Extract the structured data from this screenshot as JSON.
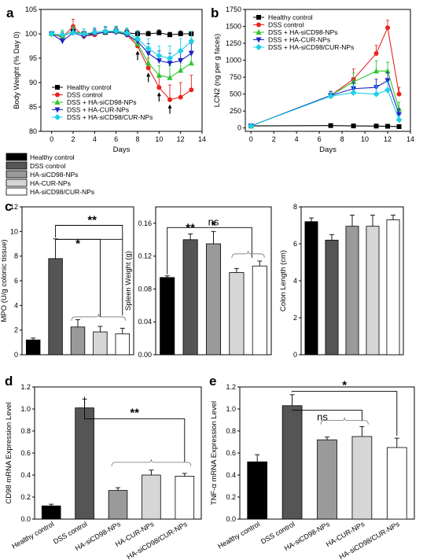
{
  "panels": {
    "a": "a",
    "b": "b",
    "c": "c",
    "d": "d",
    "e": "e"
  },
  "legend_groups": [
    {
      "name": "Healthy control",
      "color": "#000000"
    },
    {
      "name": "DSS control",
      "color": "#555555"
    },
    {
      "name": "HA-siCD98-NPs",
      "color": "#9a9a9a"
    },
    {
      "name": "HA-CUR-NPs",
      "color": "#d6d6d6"
    },
    {
      "name": "HA-siCD98/CUR-NPs",
      "color": "#ffffff"
    }
  ],
  "chart_data": [
    {
      "id": "a",
      "type": "line",
      "xlabel": "Days",
      "ylabel": "Body Weight (% Day 0)",
      "xlim": [
        -1,
        14
      ],
      "ylim": [
        80,
        105
      ],
      "xticks": [
        0,
        2,
        4,
        6,
        8,
        10,
        12,
        14
      ],
      "yticks": [
        80,
        85,
        90,
        95,
        100,
        105
      ],
      "legend_position": "lower-left",
      "series": [
        {
          "name": "Healthy control",
          "color": "#000000",
          "marker": "square",
          "x": [
            0,
            1,
            2,
            3,
            4,
            5,
            6,
            7,
            8,
            9,
            10,
            11,
            12,
            13
          ],
          "y": [
            100,
            99.5,
            100.5,
            100,
            100,
            100.3,
            100.5,
            100.2,
            100,
            100,
            100.2,
            99.8,
            100,
            100
          ],
          "err": [
            0.3,
            0.5,
            0.6,
            0.5,
            0.6,
            0.5,
            0.6,
            0.5,
            0.6,
            0.5,
            0.6,
            0.5,
            0.6,
            0.5
          ]
        },
        {
          "name": "DSS control",
          "color": "#e8251f",
          "marker": "circle",
          "x": [
            0,
            1,
            2,
            3,
            4,
            5,
            6,
            7,
            8,
            9,
            10,
            11,
            12,
            13
          ],
          "y": [
            100,
            99.3,
            101.5,
            99.5,
            99.8,
            100.5,
            100.5,
            99.8,
            97.5,
            93,
            89,
            86.5,
            87,
            88.5
          ],
          "err": [
            0.5,
            1,
            1.5,
            1,
            1,
            1,
            1,
            1.2,
            1.5,
            2,
            2.5,
            3,
            3,
            3
          ]
        },
        {
          "name": "DSS + HA-siCD98-NPs",
          "color": "#2fc62f",
          "marker": "triangle-up",
          "x": [
            0,
            1,
            2,
            3,
            4,
            5,
            6,
            7,
            8,
            9,
            10,
            11,
            12,
            13
          ],
          "y": [
            100,
            99.5,
            100.5,
            100,
            100.3,
            100.5,
            100.5,
            100,
            98,
            94,
            91.5,
            91,
            92.5,
            94
          ],
          "err": [
            0.5,
            1,
            1,
            1,
            1,
            1,
            1,
            1,
            1.5,
            2,
            2,
            2.5,
            2.5,
            2.5
          ]
        },
        {
          "name": "DSS + HA-CUR-NPs",
          "color": "#2121c8",
          "marker": "triangle-down",
          "x": [
            0,
            1,
            2,
            3,
            4,
            5,
            6,
            7,
            8,
            9,
            10,
            11,
            12,
            13
          ],
          "y": [
            100,
            98.5,
            100.2,
            99.5,
            100,
            100.3,
            100.3,
            99.8,
            98.5,
            96,
            94.5,
            94,
            94.5,
            96
          ],
          "err": [
            0.5,
            1,
            1,
            1,
            1,
            1,
            1,
            1,
            1.5,
            2,
            2,
            2,
            2,
            2
          ]
        },
        {
          "name": "DSS + HA-siCD98/CUR-NPs",
          "color": "#1ed0e6",
          "marker": "diamond",
          "x": [
            0,
            1,
            2,
            3,
            4,
            5,
            6,
            7,
            8,
            9,
            10,
            11,
            12,
            13
          ],
          "y": [
            100,
            99.8,
            100.2,
            100,
            100.3,
            100.5,
            100.6,
            100.2,
            99,
            97,
            95.5,
            95,
            96.5,
            98.5
          ],
          "err": [
            0.5,
            1,
            1,
            1,
            1,
            1,
            1,
            1,
            1.5,
            2,
            2,
            2.5,
            2.5,
            2
          ]
        }
      ],
      "arrows_at_days": [
        8,
        9,
        10,
        11
      ]
    },
    {
      "id": "b",
      "type": "line",
      "xlabel": "Days",
      "ylabel": "LCN2 (ng per g faces)",
      "xlim": [
        -0.5,
        14
      ],
      "ylim": [
        -50,
        1750
      ],
      "xticks": [
        0,
        2,
        4,
        6,
        8,
        10,
        12,
        14
      ],
      "yticks": [
        0,
        250,
        500,
        750,
        1000,
        1250,
        1500,
        1750
      ],
      "legend_position": "top-left",
      "series": [
        {
          "name": "Healthy control",
          "color": "#000000",
          "marker": "square",
          "x": [
            0,
            7,
            9,
            11,
            12,
            13
          ],
          "y": [
            30,
            35,
            30,
            28,
            25,
            20
          ],
          "err": [
            5,
            5,
            5,
            5,
            5,
            5
          ]
        },
        {
          "name": "DSS control",
          "color": "#e8251f",
          "marker": "circle",
          "x": [
            0,
            7,
            9,
            11,
            12,
            13
          ],
          "y": [
            30,
            480,
            720,
            1100,
            1480,
            500
          ],
          "err": [
            10,
            60,
            150,
            120,
            110,
            100
          ]
        },
        {
          "name": "DSS + HA-siCD98-NPs",
          "color": "#2fc62f",
          "marker": "triangle-up",
          "x": [
            0,
            7,
            9,
            11,
            12,
            13
          ],
          "y": [
            30,
            480,
            680,
            840,
            840,
            280
          ],
          "err": [
            10,
            60,
            130,
            150,
            130,
            100
          ]
        },
        {
          "name": "DSS + HA-CUR-NPs",
          "color": "#2121c8",
          "marker": "triangle-down",
          "x": [
            0,
            7,
            9,
            11,
            12,
            13
          ],
          "y": [
            30,
            480,
            580,
            600,
            700,
            200
          ],
          "err": [
            10,
            60,
            100,
            120,
            120,
            80
          ]
        },
        {
          "name": "DSS + HA-siCD98/CUR-NPs",
          "color": "#1ed0e6",
          "marker": "diamond",
          "x": [
            0,
            7,
            9,
            11,
            12,
            13
          ],
          "y": [
            30,
            470,
            520,
            500,
            560,
            120
          ],
          "err": [
            10,
            60,
            100,
            120,
            120,
            60
          ]
        }
      ]
    },
    {
      "id": "c1",
      "type": "bar",
      "ylabel": "MPO (U/g colonic tissue)",
      "ylim": [
        0,
        12
      ],
      "yticks": [
        0,
        2,
        4,
        6,
        8,
        10,
        12
      ],
      "categories": [
        "Healthy control",
        "DSS control",
        "HA-siCD98-NPs",
        "HA-CUR-NPs",
        "HA-siCD98/CUR-NPs"
      ],
      "values": [
        1.2,
        7.8,
        2.25,
        1.85,
        1.7
      ],
      "err": [
        0.15,
        1.6,
        0.6,
        0.45,
        0.45
      ],
      "significance": [
        "*",
        "**"
      ]
    },
    {
      "id": "c2",
      "type": "bar",
      "ylabel": "Spleen Weight (g)",
      "ylim": [
        0,
        0.18
      ],
      "yticks": [
        0.0,
        0.04,
        0.08,
        0.12,
        0.16
      ],
      "categories": [
        "Healthy control",
        "DSS control",
        "HA-siCD98-NPs",
        "HA-CUR-NPs",
        "HA-siCD98/CUR-NPs"
      ],
      "values": [
        0.094,
        0.14,
        0.135,
        0.1,
        0.108
      ],
      "err": [
        0.002,
        0.007,
        0.015,
        0.005,
        0.006
      ],
      "significance": [
        "**",
        "*",
        "ns"
      ]
    },
    {
      "id": "c3",
      "type": "bar",
      "ylabel": "Colon Length (cm)",
      "ylim": [
        0,
        8
      ],
      "yticks": [
        0,
        2,
        4,
        6,
        8
      ],
      "categories": [
        "Healthy control",
        "DSS control",
        "HA-siCD98-NPs",
        "HA-CUR-NPs",
        "HA-siCD98/CUR-NPs"
      ],
      "values": [
        7.2,
        6.2,
        6.95,
        6.95,
        7.3
      ],
      "err": [
        0.2,
        0.3,
        0.6,
        0.6,
        0.25
      ]
    },
    {
      "id": "d",
      "type": "bar",
      "ylabel": "CD98 mRNA Expression Level",
      "ylim": [
        0,
        1.2
      ],
      "yticks": [
        0.0,
        0.2,
        0.4,
        0.6,
        0.8,
        1.0,
        1.2
      ],
      "categories": [
        "Healthy control",
        "DSS control",
        "HA-siCD98-NPs",
        "HA-CUR-NPs",
        "HA-siCD98/CUR-NPs"
      ],
      "values": [
        0.12,
        1.01,
        0.26,
        0.4,
        0.39
      ],
      "err": [
        0.015,
        0.08,
        0.025,
        0.045,
        0.025
      ],
      "significance": [
        "**"
      ]
    },
    {
      "id": "e",
      "type": "bar",
      "ylabel": "TNF-α mRNA Expression Level",
      "ylim": [
        0,
        1.2
      ],
      "yticks": [
        0.0,
        0.2,
        0.4,
        0.6,
        0.8,
        1.0,
        1.2
      ],
      "categories": [
        "Healthy control",
        "DSS control",
        "HA-siCD98-NPs",
        "HA-CUR-NPs",
        "HA-siCD98/CUR-NPs"
      ],
      "values": [
        0.52,
        1.03,
        0.72,
        0.75,
        0.65
      ],
      "err": [
        0.065,
        0.1,
        0.025,
        0.09,
        0.085
      ],
      "significance": [
        "*",
        "ns"
      ]
    }
  ]
}
